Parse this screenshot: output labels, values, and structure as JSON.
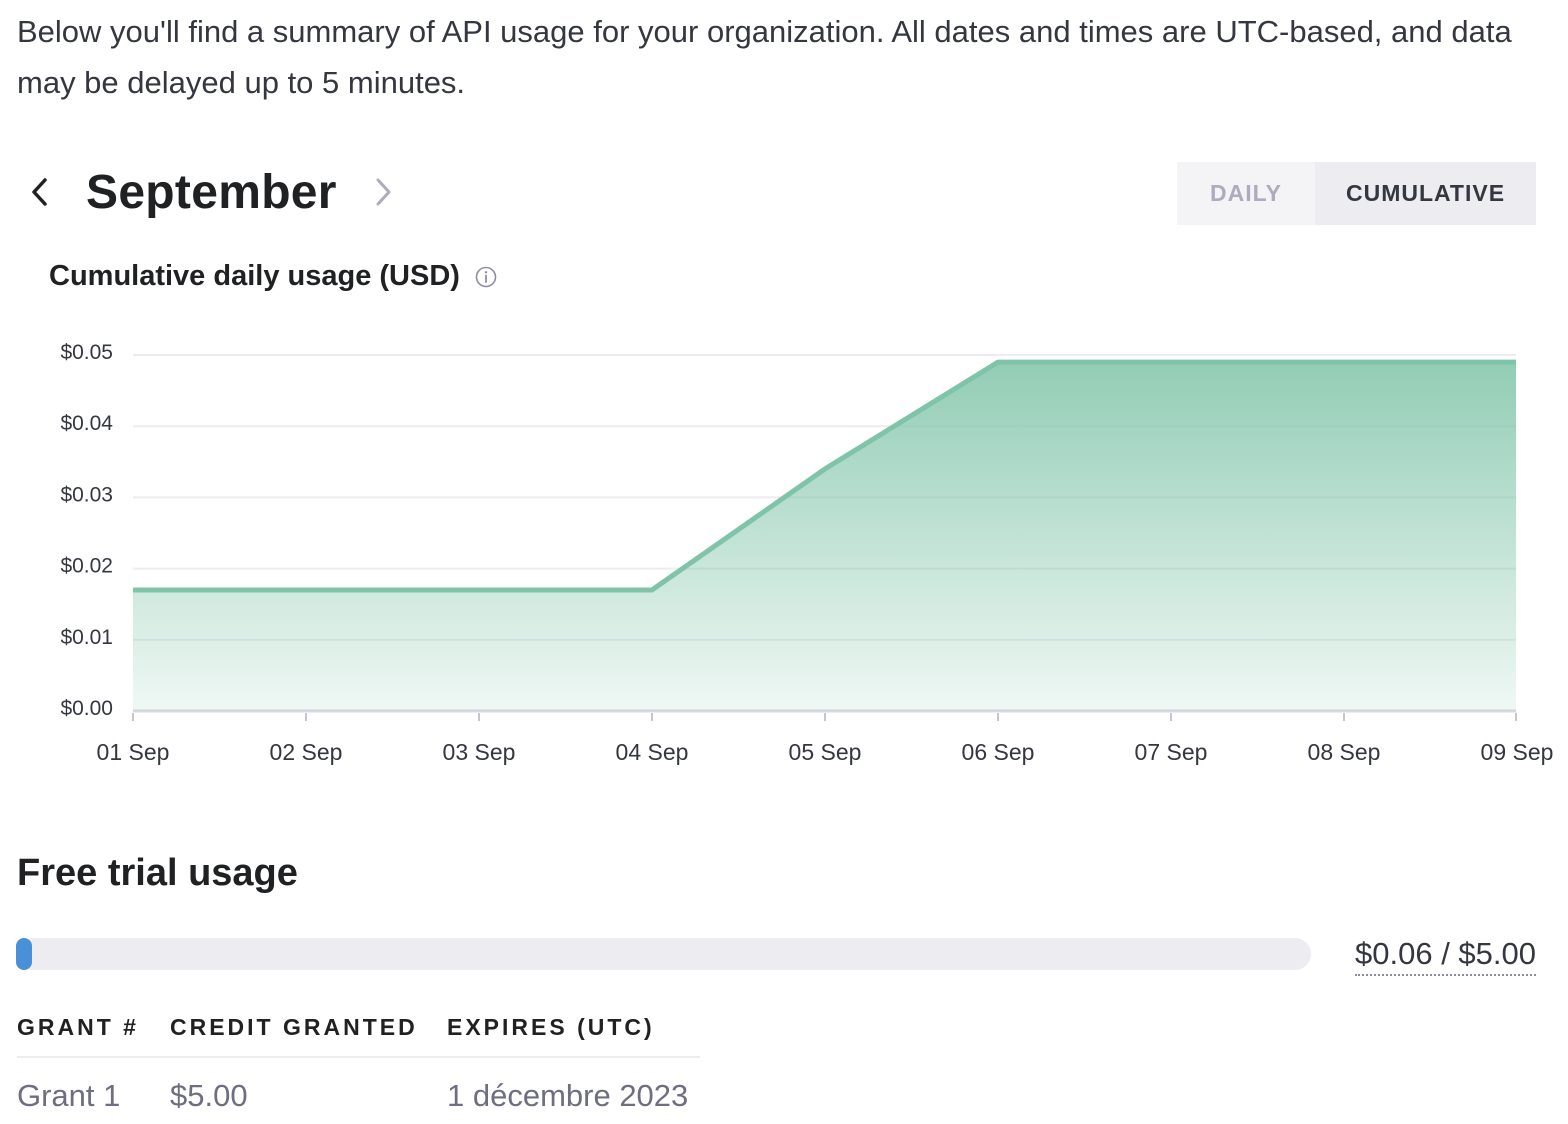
{
  "intro": "Below you'll find a summary of API usage for your organization. All dates and times are UTC-based, and data may be delayed up to 5 minutes.",
  "month_nav": {
    "month": "September",
    "prev_icon": "chevron-left-icon",
    "next_icon": "chevron-right-icon"
  },
  "view_toggle": {
    "daily_label": "DAILY",
    "cumulative_label": "CUMULATIVE",
    "selected": "CUMULATIVE"
  },
  "chart_title": "Cumulative daily usage (USD)",
  "chart_data": {
    "type": "area",
    "title": "Cumulative daily usage (USD)",
    "x": [
      "01 Sep",
      "02 Sep",
      "03 Sep",
      "04 Sep",
      "05 Sep",
      "06 Sep",
      "07 Sep",
      "08 Sep",
      "09 Sep"
    ],
    "series": [
      {
        "values": [
          0.017,
          0.017,
          0.017,
          0.017,
          0.034,
          0.049,
          0.049,
          0.049,
          0.049
        ]
      }
    ],
    "y_ticks": [
      "$0.00",
      "$0.01",
      "$0.02",
      "$0.03",
      "$0.04",
      "$0.05"
    ],
    "ylim": [
      0,
      0.05
    ],
    "grid": true,
    "color": "#7fc4a8"
  },
  "free_trial": {
    "title": "Free trial usage",
    "used_fraction": 0.012,
    "label": "$0.06 / $5.00",
    "bar_color": "#4a90d9"
  },
  "grants": {
    "headers": [
      "GRANT #",
      "CREDIT GRANTED",
      "EXPIRES (UTC)"
    ],
    "rows": [
      [
        "Grant 1",
        "$5.00",
        "1 décembre 2023"
      ]
    ]
  }
}
